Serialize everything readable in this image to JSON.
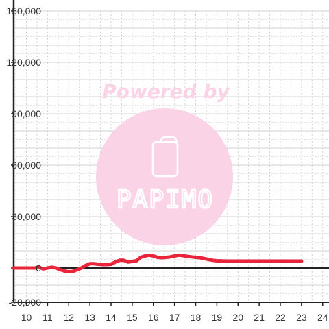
{
  "watermark": {
    "caption": "Powered by",
    "brand": "PAPIMO"
  },
  "colors": {
    "line": "#e8253b",
    "grid_major": "#d0d0d0",
    "grid_minor": "#e2e2e2",
    "axis": "#222222",
    "watermark_circle": "#fbd3e7"
  },
  "chart_data": {
    "type": "line",
    "title": "",
    "xlabel": "",
    "ylabel": "",
    "xlim": [
      9.4,
      24.3
    ],
    "ylim": [
      -20000,
      150000
    ],
    "x_ticks": [
      10,
      11,
      12,
      13,
      14,
      15,
      16,
      17,
      18,
      19,
      20,
      21,
      22,
      23,
      24
    ],
    "y_ticks": [
      -20000,
      0,
      30000,
      60000,
      90000,
      120000,
      150000
    ],
    "y_tick_labels": [
      "-20,000",
      "0",
      "30,000",
      "60,000",
      "90,000",
      "120,000",
      "150,000"
    ],
    "grid": true,
    "series": [
      {
        "x": [
          9.4,
          9.8,
          10.2,
          10.4,
          10.6,
          10.8,
          11.0,
          11.2,
          11.4,
          11.6,
          11.8,
          12.0,
          12.2,
          12.4,
          12.6,
          12.8,
          13.0,
          13.2,
          13.4,
          13.6,
          13.8,
          14.0,
          14.2,
          14.4,
          14.6,
          14.8,
          15.0,
          15.2,
          15.4,
          15.6,
          15.8,
          16.0,
          16.2,
          16.4,
          16.6,
          16.8,
          17.0,
          17.2,
          17.4,
          17.6,
          17.8,
          18.0,
          18.2,
          18.4,
          18.6,
          18.8,
          19.0,
          19.5,
          20.0,
          21.0,
          22.0,
          23.0
        ],
        "y": [
          0,
          0,
          0,
          0,
          500,
          -500,
          0,
          500,
          0,
          -1000,
          -1800,
          -2200,
          -2000,
          -1000,
          0,
          1500,
          2500,
          2500,
          2200,
          2000,
          2000,
          2200,
          3500,
          4500,
          4500,
          3500,
          3800,
          4200,
          6200,
          7000,
          7500,
          7000,
          6200,
          6000,
          6200,
          6500,
          7000,
          7500,
          7200,
          6800,
          6500,
          6200,
          6000,
          5500,
          5000,
          4500,
          4200,
          4000,
          4000,
          4000,
          4000,
          4000
        ]
      }
    ]
  }
}
